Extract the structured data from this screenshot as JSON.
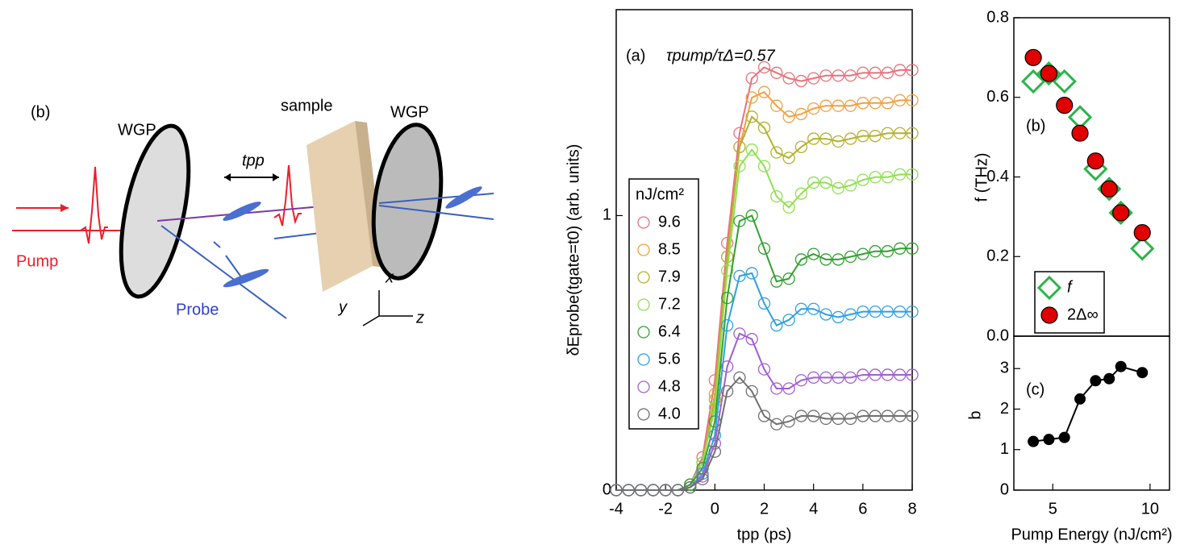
{
  "diagram": {
    "label": "(b)",
    "wgp_left": "WGP",
    "sample": "sample",
    "wgp_right": "WGP",
    "pump": "Pump",
    "probe": "Probe",
    "delay": "tpp",
    "axis_x": "x",
    "axis_y": "y",
    "axis_z": "z"
  },
  "chart_data": [
    {
      "type": "line",
      "marker": "open-circle",
      "annotation_label": "(a)",
      "annotation": "τpump/τΔ=0.57",
      "x_label": "tpp (ps)",
      "y_label": "δEprobe(tgate=t0) (arb. units)",
      "legend_title": "nJ/cm²",
      "x": [
        -4,
        -3.5,
        -3,
        -2.5,
        -2,
        -1.5,
        -1,
        -0.5,
        0,
        0.5,
        1,
        1.5,
        2,
        2.5,
        3,
        3.5,
        4,
        4.5,
        5,
        5.5,
        6,
        6.5,
        7,
        7.5,
        8
      ],
      "xlim": [
        -4,
        8
      ],
      "xticks": [
        -4,
        -2,
        0,
        2,
        4,
        6,
        8
      ],
      "ylim": [
        0,
        1.75
      ],
      "yticks": [
        0,
        1
      ],
      "series": [
        {
          "name": "9.6",
          "color": "#e8707a",
          "values": [
            0,
            0,
            0,
            0,
            0,
            0,
            0.02,
            0.12,
            0.4,
            0.9,
            1.3,
            1.5,
            1.54,
            1.52,
            1.5,
            1.49,
            1.5,
            1.51,
            1.51,
            1.51,
            1.52,
            1.52,
            1.52,
            1.53,
            1.53
          ]
        },
        {
          "name": "8.5",
          "color": "#f0a040",
          "values": [
            0,
            0,
            0,
            0,
            0,
            0,
            0.02,
            0.1,
            0.35,
            0.85,
            1.25,
            1.43,
            1.45,
            1.4,
            1.36,
            1.37,
            1.39,
            1.4,
            1.4,
            1.4,
            1.41,
            1.41,
            1.41,
            1.42,
            1.42
          ]
        },
        {
          "name": "7.9",
          "color": "#b5b030",
          "values": [
            0,
            0,
            0,
            0,
            0,
            0,
            0.02,
            0.1,
            0.33,
            0.85,
            1.25,
            1.36,
            1.32,
            1.23,
            1.21,
            1.25,
            1.28,
            1.28,
            1.27,
            1.28,
            1.29,
            1.29,
            1.3,
            1.3,
            1.3
          ]
        },
        {
          "name": "7.2",
          "color": "#90e050",
          "values": [
            0,
            0,
            0,
            0,
            0,
            0,
            0.02,
            0.1,
            0.3,
            0.8,
            1.18,
            1.24,
            1.18,
            1.07,
            1.03,
            1.08,
            1.12,
            1.12,
            1.1,
            1.11,
            1.13,
            1.14,
            1.14,
            1.15,
            1.15
          ]
        },
        {
          "name": "6.4",
          "color": "#30a030",
          "values": [
            0,
            0,
            0,
            0,
            0,
            0,
            0.02,
            0.08,
            0.25,
            0.7,
            0.98,
            1.0,
            0.88,
            0.76,
            0.77,
            0.84,
            0.86,
            0.84,
            0.84,
            0.85,
            0.86,
            0.87,
            0.87,
            0.88,
            0.88
          ]
        },
        {
          "name": "5.6",
          "color": "#30a0e0",
          "values": [
            0,
            0,
            0,
            0,
            0,
            0,
            0.01,
            0.06,
            0.2,
            0.6,
            0.78,
            0.79,
            0.68,
            0.6,
            0.62,
            0.66,
            0.66,
            0.64,
            0.63,
            0.64,
            0.65,
            0.65,
            0.65,
            0.65,
            0.65
          ]
        },
        {
          "name": "4.8",
          "color": "#a060d0",
          "values": [
            0,
            0,
            0,
            0,
            0,
            0,
            0.01,
            0.05,
            0.17,
            0.45,
            0.57,
            0.55,
            0.44,
            0.37,
            0.37,
            0.4,
            0.41,
            0.41,
            0.41,
            0.41,
            0.42,
            0.42,
            0.42,
            0.42,
            0.42
          ]
        },
        {
          "name": "4.0",
          "color": "#707070",
          "values": [
            0,
            0,
            0,
            0,
            0,
            0,
            0.01,
            0.04,
            0.14,
            0.36,
            0.41,
            0.36,
            0.27,
            0.24,
            0.25,
            0.27,
            0.27,
            0.26,
            0.26,
            0.26,
            0.27,
            0.27,
            0.27,
            0.27,
            0.27
          ]
        }
      ]
    },
    {
      "type": "scatter",
      "panel_label": "(b)",
      "y_label": "f (THz)",
      "x": [
        4.0,
        4.8,
        5.6,
        6.4,
        7.2,
        7.9,
        8.5,
        9.6
      ],
      "xlim": [
        3,
        11
      ],
      "ylim": [
        0,
        0.8
      ],
      "yticks": [
        {
          "value": 0,
          "label": "0.0"
        },
        0.2,
        0.4,
        0.6,
        0.8
      ],
      "series": [
        {
          "name": "f",
          "color": "#2db34a",
          "marker": "diamond",
          "values": [
            0.64,
            0.66,
            0.64,
            0.55,
            0.42,
            0.37,
            0.31,
            0.22
          ]
        },
        {
          "name": "2Δ∞",
          "color": "#e00000",
          "marker": "circle",
          "values": [
            0.7,
            0.66,
            0.58,
            0.51,
            0.44,
            0.37,
            0.31,
            0.26
          ]
        }
      ]
    },
    {
      "type": "line",
      "marker": "filled-circle",
      "panel_label": "(c)",
      "y_label": "b",
      "x_label": "Pump Energy (nJ/cm²)",
      "x": [
        4.0,
        4.8,
        5.6,
        6.4,
        7.2,
        7.9,
        8.5,
        9.6
      ],
      "xlim": [
        3,
        11
      ],
      "xticks": [
        5,
        10
      ],
      "ylim": [
        0,
        3.8
      ],
      "yticks": [
        0,
        1,
        2,
        3
      ],
      "series": [
        {
          "color": "#000000",
          "values": [
            1.2,
            1.25,
            1.3,
            2.25,
            2.7,
            2.75,
            3.05,
            2.9
          ]
        }
      ]
    }
  ]
}
